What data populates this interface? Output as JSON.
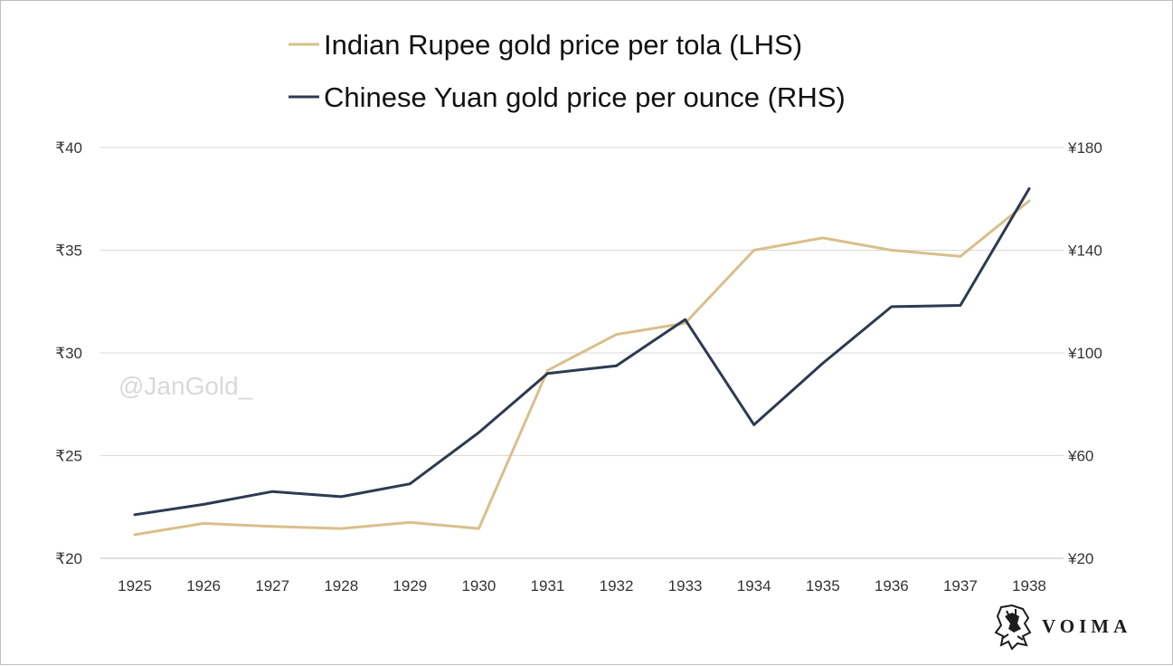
{
  "chart_data": {
    "type": "line",
    "categories": [
      "1925",
      "1926",
      "1927",
      "1928",
      "1929",
      "1930",
      "1931",
      "1932",
      "1933",
      "1934",
      "1935",
      "1936",
      "1937",
      "1938"
    ],
    "series": [
      {
        "name": "Indian Rupee gold price per tola (LHS)",
        "axis": "left",
        "color": "#d9bf8c",
        "values": [
          21.15,
          21.7,
          21.55,
          21.45,
          21.75,
          21.45,
          29.15,
          30.9,
          31.45,
          35.0,
          35.6,
          35.0,
          34.7,
          37.4
        ]
      },
      {
        "name": "Chinese Yuan gold price per ounce (RHS)",
        "axis": "right",
        "color": "#2e3a50",
        "values": [
          37,
          41,
          46,
          44,
          49,
          69,
          92,
          95,
          113,
          72,
          96,
          118,
          118.5,
          164
        ]
      }
    ],
    "y_left": {
      "min": 20,
      "max": 40,
      "ticks": [
        20,
        25,
        30,
        35,
        40
      ],
      "tick_labels": [
        "₹20",
        "₹25",
        "₹30",
        "₹35",
        "₹40"
      ]
    },
    "y_right": {
      "min": 20,
      "max": 180,
      "ticks": [
        20,
        60,
        100,
        140,
        180
      ],
      "tick_labels": [
        "¥20",
        "¥60",
        "¥100",
        "¥140",
        "¥180"
      ]
    },
    "grid": true,
    "legend_position": "top",
    "title": "",
    "xlabel": "",
    "ylabel": ""
  },
  "watermark": "@JanGold_",
  "brand": "VOIMA",
  "icons": {
    "brand_logo": "lion-crest-icon"
  }
}
